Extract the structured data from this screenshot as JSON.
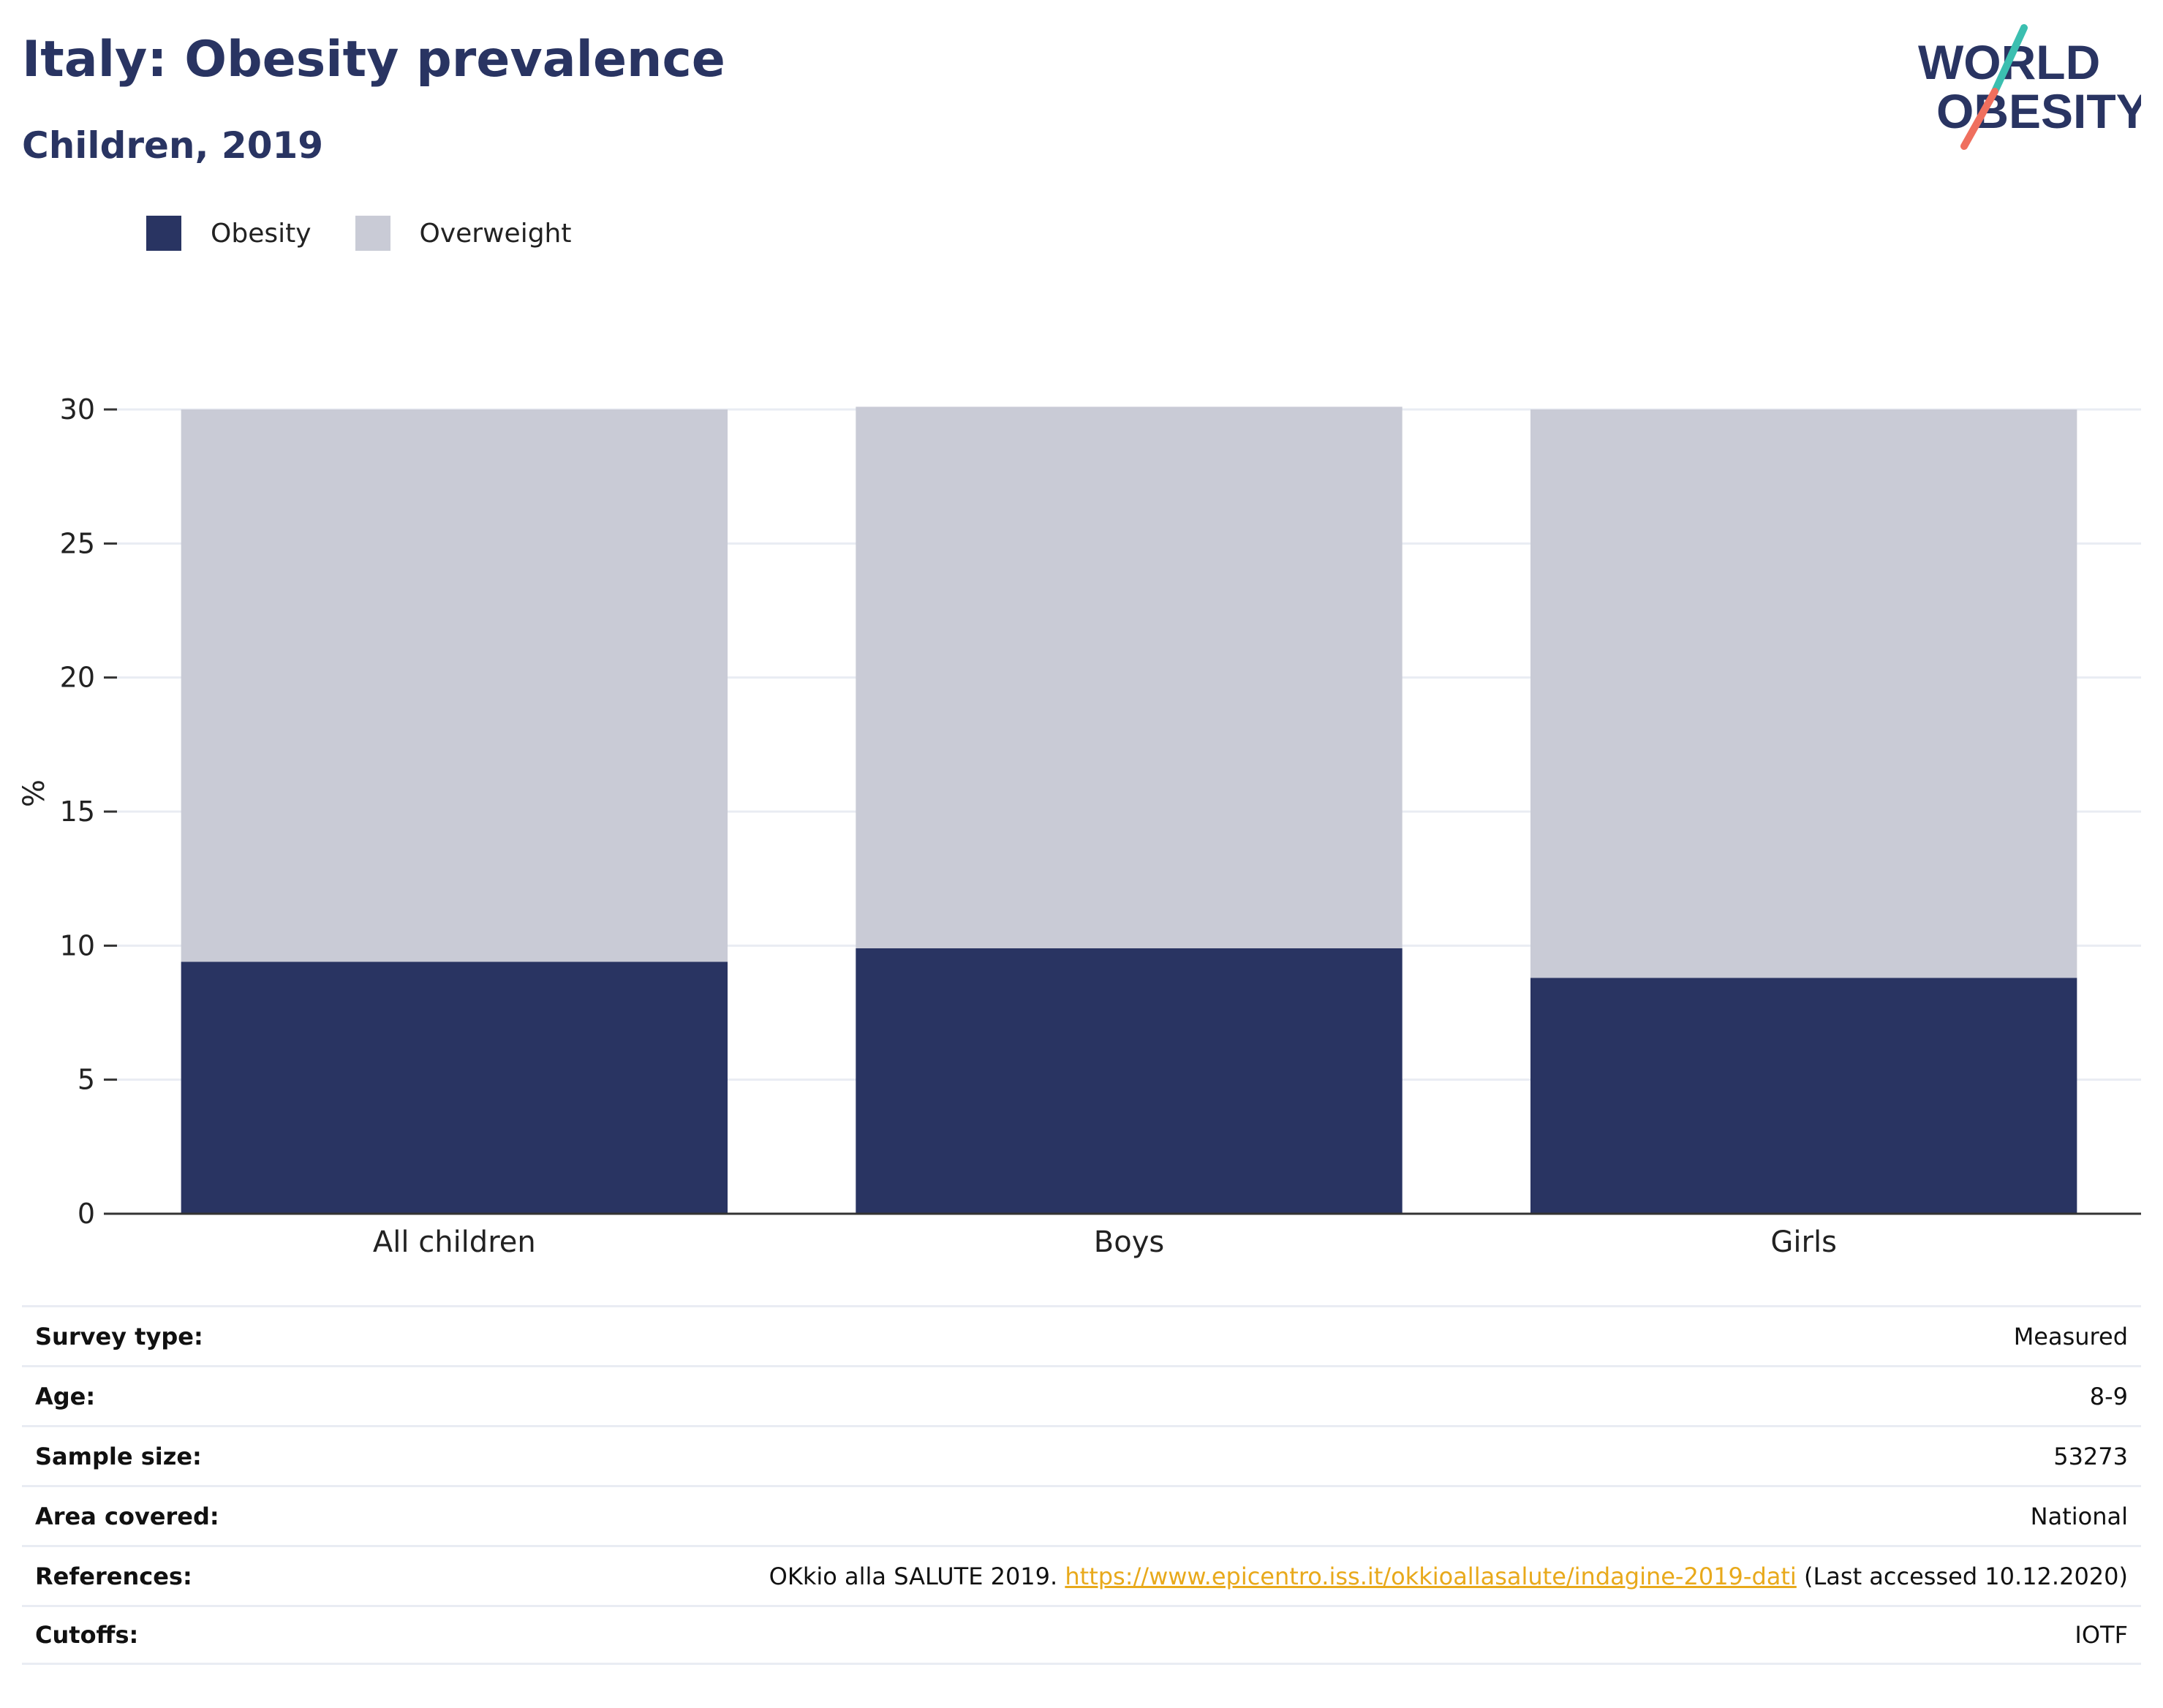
{
  "header": {
    "title": "Italy: Obesity prevalence",
    "subtitle": "Children, 2019"
  },
  "logo": {
    "line1": "WORLD",
    "line2": "OBESITY"
  },
  "colors": {
    "obesity": "#293462",
    "overweight": "#c9cbd6",
    "accent_teal": "#3bbfb0",
    "accent_coral": "#ef6f5e",
    "link": "#e8a91b"
  },
  "chart_data": {
    "type": "bar",
    "stacked": true,
    "categories": [
      "All children",
      "Boys",
      "Girls"
    ],
    "series": [
      {
        "name": "Obesity",
        "values": [
          9.4,
          9.9,
          8.8
        ]
      },
      {
        "name": "Overweight",
        "values": [
          20.6,
          20.2,
          21.2
        ]
      }
    ],
    "ylabel": "%",
    "ylim": [
      0,
      30
    ],
    "yticks": [
      "0",
      "5",
      "10",
      "15",
      "20",
      "25",
      "30"
    ],
    "grid": true,
    "legend_position": "top-left"
  },
  "info": {
    "rows": [
      {
        "label": "Survey type:",
        "value": "Measured"
      },
      {
        "label": "Age:",
        "value": "8-9"
      },
      {
        "label": "Sample size:",
        "value": "53273"
      },
      {
        "label": "Area covered:",
        "value": "National"
      },
      {
        "label": "Cutoffs:",
        "value": "IOTF"
      }
    ],
    "references": {
      "label": "References:",
      "prefix": "OKkio alla SALUTE 2019. ",
      "link": "https://www.epicentro.iss.it/okkioallasalute/indagine-2019-dati",
      "suffix": " (Last accessed 10.12.2020)"
    }
  }
}
